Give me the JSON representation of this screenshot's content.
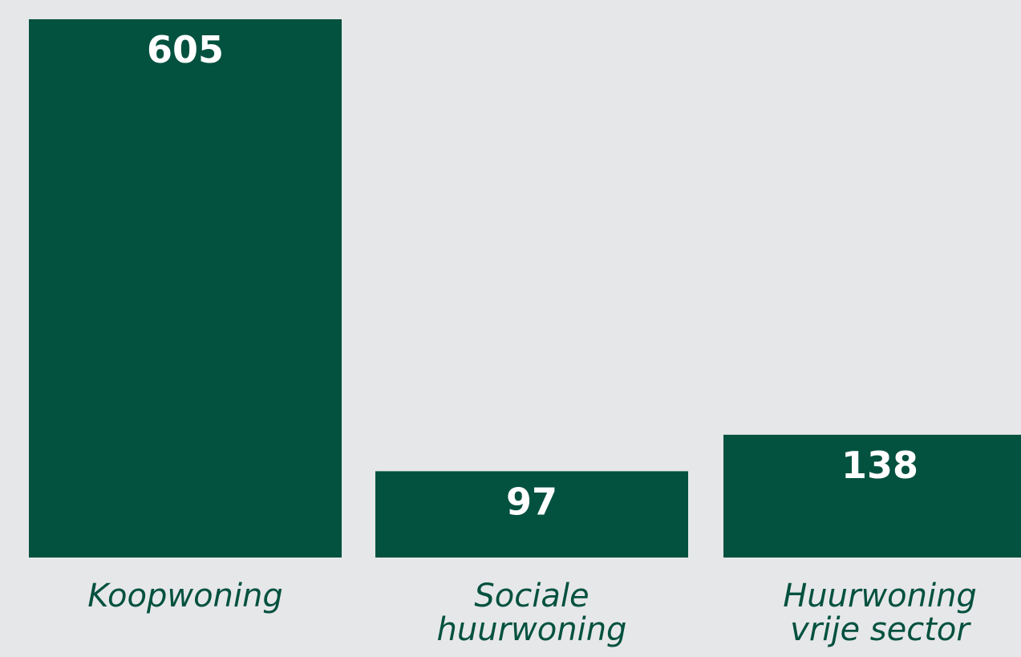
{
  "chart_data": {
    "type": "bar",
    "categories": [
      "Koopwoning",
      "Sociale huurwoning",
      "Huurwoning vrije sector"
    ],
    "values": [
      605,
      97,
      138
    ],
    "color": "#03513f"
  }
}
